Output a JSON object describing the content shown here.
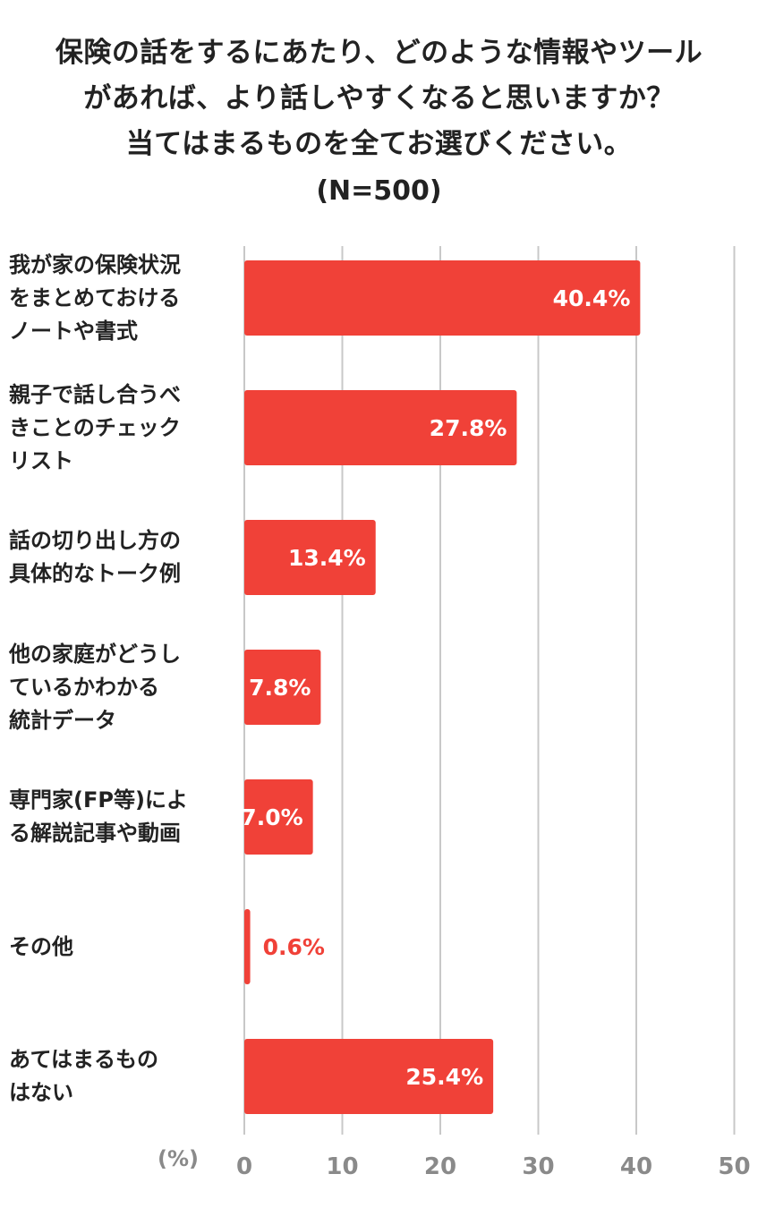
{
  "colors": {
    "bar": "#f04138",
    "label_inside": "#ffffff",
    "label_outside": "#f04138",
    "gridline": "#c8c8c8",
    "tick": "#8a8a8a",
    "text": "#222222"
  },
  "chart_data": {
    "type": "bar",
    "orientation": "horizontal",
    "title_lines": [
      "保険の話をするにあたり、どのような情報やツール",
      "があれば、より話しやすくなると思いますか？",
      "当てはまるものを全てお選びください。"
    ],
    "subtitle": "(N=500)",
    "categories": [
      [
        "我が家の保険状況",
        "をまとめておける",
        "ノートや書式"
      ],
      [
        "親子で話し合うべ",
        "きことのチェック",
        "リスト"
      ],
      [
        "話の切り出し方の",
        "具体的なトーク例"
      ],
      [
        "他の家庭がどうし",
        "ているかわかる",
        "統計データ"
      ],
      [
        "専門家(FP等)によ",
        "る解説記事や動画"
      ],
      [
        "その他"
      ],
      [
        "あてはまるもの",
        "はない"
      ]
    ],
    "values": [
      40.4,
      27.8,
      13.4,
      7.8,
      7.0,
      0.6,
      25.4
    ],
    "value_labels": [
      "40.4%",
      "27.8%",
      "13.4%",
      "7.8%",
      "7.0%",
      "0.6%",
      "25.4%"
    ],
    "xlabel": "(%)",
    "xlim": [
      0,
      50
    ],
    "xticks": [
      "0",
      "10",
      "20",
      "30",
      "40",
      "50"
    ],
    "grid": "vertical"
  }
}
